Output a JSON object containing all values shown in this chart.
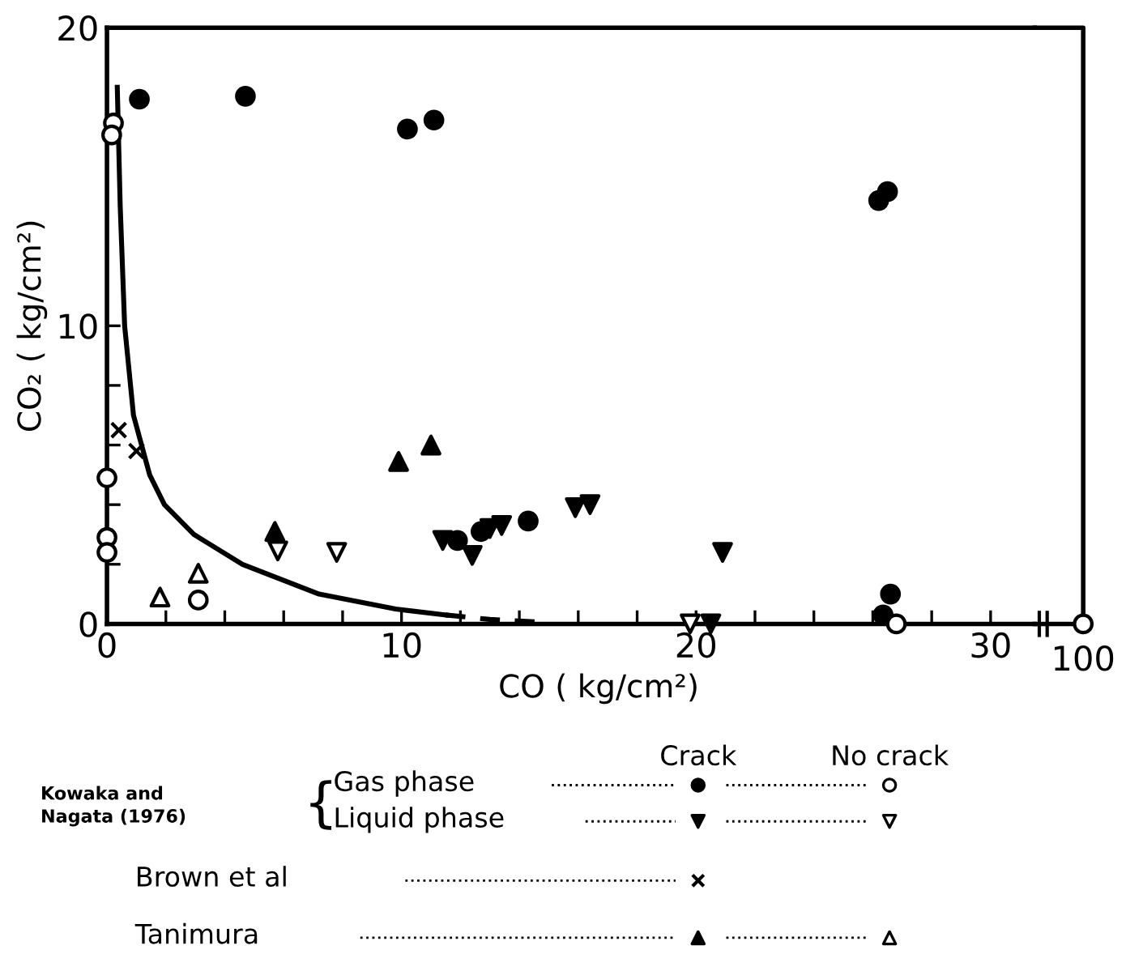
{
  "chart_data": [
    {
      "type": "scatter",
      "xlabel": "CO ( kg/cm²)",
      "ylabel": "CO₂ ( kg/cm²)",
      "xlim": [
        0,
        31.5
      ],
      "ylim": [
        0,
        20
      ],
      "xticks": [
        0,
        {
          "value": 2,
          "label": null
        },
        {
          "value": 4,
          "label": null
        },
        {
          "value": 6,
          "label": null
        },
        {
          "value": 8,
          "label": null
        },
        10,
        {
          "value": 12,
          "label": null
        },
        {
          "value": 14,
          "label": null
        },
        {
          "value": 16,
          "label": null
        },
        {
          "value": 18,
          "label": null
        },
        20,
        {
          "value": 22,
          "label": null
        },
        {
          "value": 24,
          "label": null
        },
        {
          "value": 26,
          "label": null
        },
        {
          "value": 28,
          "label": null
        },
        30
      ],
      "yticks": [
        0,
        {
          "value": 2,
          "label": null
        },
        {
          "value": 4,
          "label": null
        },
        {
          "value": 6,
          "label": null
        },
        {
          "value": 8,
          "label": null
        },
        10,
        20
      ],
      "grid": false,
      "legend": false,
      "series": [
        {
          "marker": "circle",
          "color": "#000000",
          "x": [
            1.1,
            4.7,
            10.2,
            11.1,
            26.2,
            26.5,
            26.6,
            26.35,
            14.3,
            12.7,
            11.9
          ],
          "values": [
            17.6,
            17.7,
            16.6,
            16.9,
            14.2,
            14.5,
            1.0,
            0.3,
            3.45,
            3.1,
            2.8
          ]
        },
        {
          "marker": "circle",
          "color": "#ffffff",
          "x": [
            0.22,
            0.16,
            0,
            0,
            0,
            3.1,
            26.8
          ],
          "values": [
            16.8,
            16.4,
            4.9,
            2.9,
            2.4,
            0.8,
            0
          ]
        },
        {
          "marker": "triangle_down",
          "color": "#000000",
          "x": [
            11.4,
            12.4,
            13.0,
            13.4,
            15.9,
            16.4,
            20.9,
            20.5
          ],
          "values": [
            2.8,
            2.3,
            3.2,
            3.3,
            3.9,
            4.0,
            2.4,
            0
          ]
        },
        {
          "marker": "triangle_down",
          "color": "#ffffff",
          "x": [
            5.8,
            7.8,
            19.8
          ],
          "values": [
            2.45,
            2.4,
            0
          ]
        },
        {
          "marker": "cross",
          "color": "#000000",
          "x": [
            0.4,
            1.0
          ],
          "values": [
            6.5,
            5.8
          ]
        },
        {
          "marker": "triangle",
          "color": "#000000",
          "x": [
            9.9,
            11.0,
            5.7
          ],
          "values": [
            5.45,
            6.0,
            3.1
          ]
        },
        {
          "marker": "triangle",
          "color": "#ffffff",
          "x": [
            1.8,
            3.1
          ],
          "values": [
            0.9,
            1.7
          ]
        },
        {
          "type": "line",
          "line_style": "solid",
          "marker": "none",
          "color": "#000000",
          "x": [
            0.35,
            0.45,
            0.6,
            0.9,
            1.45,
            1.95,
            2.95,
            4.6,
            7.2,
            9.8,
            11.5
          ],
          "values": [
            18,
            14,
            10,
            7,
            5,
            4,
            3,
            2,
            1,
            0.5,
            0.3
          ]
        },
        {
          "type": "line",
          "line_style": "dashed",
          "marker": "none",
          "color": "#000000",
          "x": [
            11.5,
            13,
            15
          ],
          "values": [
            0.3,
            0.15,
            0.05
          ]
        }
      ],
      "annotations": [
        "Crack",
        "No crack",
        "Kowaka and\nNagata (1976)",
        "{",
        "Gas phase",
        "Liquid phase",
        "Brown et al",
        "Tanimura",
        "100"
      ]
    }
  ]
}
